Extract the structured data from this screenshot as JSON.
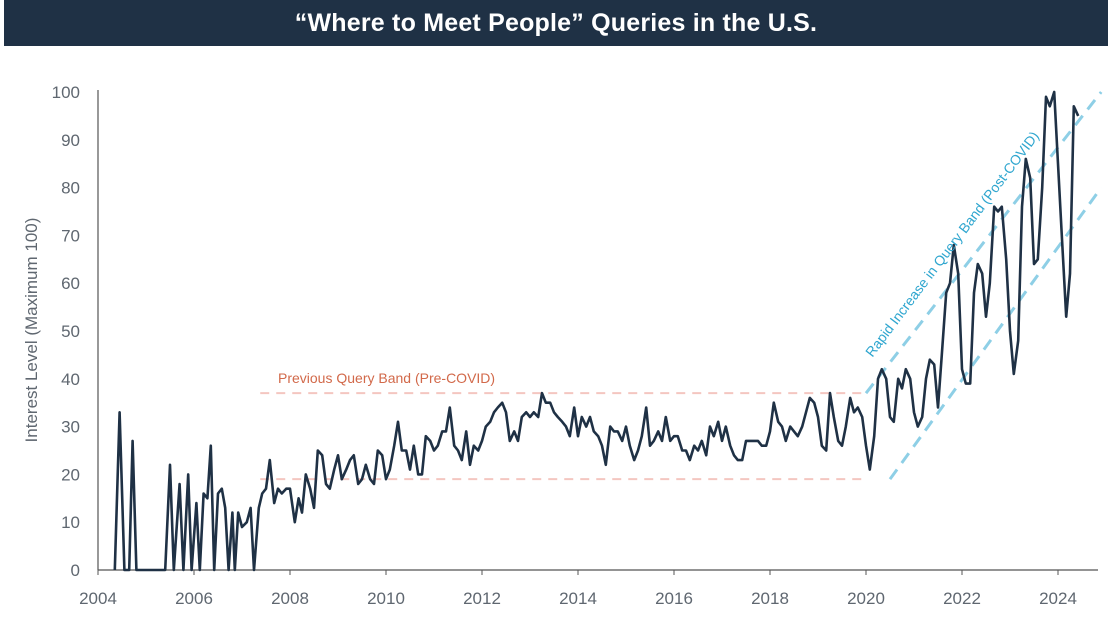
{
  "header": {
    "title": "“Where to Meet People” Queries in the U.S."
  },
  "chart_data": {
    "type": "line",
    "title": "“Where to Meet People” Queries in the U.S.",
    "xlabel": "",
    "ylabel": "Interest Level (Maximum 100)",
    "xlim": [
      2004,
      2024.9
    ],
    "ylim": [
      0,
      100
    ],
    "grid": false,
    "x_ticks": [
      "2004",
      "2006",
      "2008",
      "2010",
      "2012",
      "2014",
      "2016",
      "2018",
      "2020",
      "2022",
      "2024"
    ],
    "y_ticks": [
      "0",
      "10",
      "20",
      "30",
      "40",
      "50",
      "60",
      "70",
      "80",
      "90",
      "100"
    ],
    "series": [
      {
        "color": "#1f3145",
        "points": [
          [
            2004.35,
            0
          ],
          [
            2004.45,
            33
          ],
          [
            2004.55,
            0
          ],
          [
            2004.65,
            0
          ],
          [
            2004.72,
            27
          ],
          [
            2004.8,
            0
          ],
          [
            2005.0,
            0
          ],
          [
            2005.2,
            0
          ],
          [
            2005.4,
            0
          ],
          [
            2005.5,
            22
          ],
          [
            2005.58,
            0
          ],
          [
            2005.7,
            18
          ],
          [
            2005.78,
            0
          ],
          [
            2005.88,
            20
          ],
          [
            2005.95,
            0
          ],
          [
            2006.05,
            14
          ],
          [
            2006.12,
            0
          ],
          [
            2006.2,
            16
          ],
          [
            2006.28,
            15
          ],
          [
            2006.35,
            26
          ],
          [
            2006.42,
            0
          ],
          [
            2006.5,
            16
          ],
          [
            2006.58,
            17
          ],
          [
            2006.65,
            13
          ],
          [
            2006.72,
            0
          ],
          [
            2006.8,
            12
          ],
          [
            2006.85,
            0
          ],
          [
            2006.92,
            12
          ],
          [
            2007.0,
            9
          ],
          [
            2007.1,
            10
          ],
          [
            2007.18,
            13
          ],
          [
            2007.25,
            0
          ],
          [
            2007.35,
            13
          ],
          [
            2007.42,
            16
          ],
          [
            2007.5,
            17
          ],
          [
            2007.58,
            23
          ],
          [
            2007.67,
            14
          ],
          [
            2007.75,
            17
          ],
          [
            2007.83,
            16
          ],
          [
            2007.92,
            17
          ],
          [
            2008.0,
            17
          ],
          [
            2008.1,
            10
          ],
          [
            2008.18,
            15
          ],
          [
            2008.25,
            12
          ],
          [
            2008.33,
            20
          ],
          [
            2008.42,
            17
          ],
          [
            2008.5,
            13
          ],
          [
            2008.58,
            25
          ],
          [
            2008.67,
            24
          ],
          [
            2008.75,
            18
          ],
          [
            2008.83,
            17
          ],
          [
            2008.92,
            21
          ],
          [
            2009.0,
            24
          ],
          [
            2009.08,
            19
          ],
          [
            2009.17,
            21
          ],
          [
            2009.25,
            23
          ],
          [
            2009.33,
            24
          ],
          [
            2009.42,
            18
          ],
          [
            2009.5,
            19
          ],
          [
            2009.58,
            22
          ],
          [
            2009.67,
            19
          ],
          [
            2009.75,
            18
          ],
          [
            2009.83,
            25
          ],
          [
            2009.92,
            24
          ],
          [
            2010.0,
            19
          ],
          [
            2010.08,
            21
          ],
          [
            2010.17,
            26
          ],
          [
            2010.25,
            31
          ],
          [
            2010.33,
            25
          ],
          [
            2010.42,
            25
          ],
          [
            2010.5,
            21
          ],
          [
            2010.58,
            26
          ],
          [
            2010.67,
            20
          ],
          [
            2010.75,
            20
          ],
          [
            2010.83,
            28
          ],
          [
            2010.92,
            27
          ],
          [
            2011.0,
            25
          ],
          [
            2011.08,
            26
          ],
          [
            2011.17,
            29
          ],
          [
            2011.25,
            29
          ],
          [
            2011.33,
            34
          ],
          [
            2011.42,
            26
          ],
          [
            2011.5,
            25
          ],
          [
            2011.58,
            23
          ],
          [
            2011.67,
            29
          ],
          [
            2011.75,
            22
          ],
          [
            2011.83,
            26
          ],
          [
            2011.92,
            25
          ],
          [
            2012.0,
            27
          ],
          [
            2012.08,
            30
          ],
          [
            2012.17,
            31
          ],
          [
            2012.25,
            33
          ],
          [
            2012.33,
            34
          ],
          [
            2012.42,
            35
          ],
          [
            2012.5,
            33
          ],
          [
            2012.58,
            27
          ],
          [
            2012.67,
            29
          ],
          [
            2012.75,
            27
          ],
          [
            2012.83,
            32
          ],
          [
            2012.92,
            33
          ],
          [
            2013.0,
            32
          ],
          [
            2013.08,
            33
          ],
          [
            2013.17,
            32
          ],
          [
            2013.25,
            37
          ],
          [
            2013.33,
            35
          ],
          [
            2013.42,
            35
          ],
          [
            2013.5,
            33
          ],
          [
            2013.58,
            32
          ],
          [
            2013.67,
            31
          ],
          [
            2013.75,
            30
          ],
          [
            2013.83,
            28
          ],
          [
            2013.92,
            34
          ],
          [
            2014.0,
            28
          ],
          [
            2014.08,
            32
          ],
          [
            2014.17,
            30
          ],
          [
            2014.25,
            32
          ],
          [
            2014.33,
            29
          ],
          [
            2014.42,
            28
          ],
          [
            2014.5,
            26
          ],
          [
            2014.58,
            22
          ],
          [
            2014.67,
            30
          ],
          [
            2014.75,
            29
          ],
          [
            2014.83,
            29
          ],
          [
            2014.92,
            27
          ],
          [
            2015.0,
            30
          ],
          [
            2015.08,
            26
          ],
          [
            2015.17,
            23
          ],
          [
            2015.25,
            25
          ],
          [
            2015.33,
            28
          ],
          [
            2015.42,
            34
          ],
          [
            2015.5,
            26
          ],
          [
            2015.58,
            27
          ],
          [
            2015.67,
            29
          ],
          [
            2015.75,
            27
          ],
          [
            2015.83,
            32
          ],
          [
            2015.92,
            27
          ],
          [
            2016.0,
            28
          ],
          [
            2016.08,
            28
          ],
          [
            2016.17,
            25
          ],
          [
            2016.25,
            25
          ],
          [
            2016.33,
            23
          ],
          [
            2016.42,
            26
          ],
          [
            2016.5,
            25
          ],
          [
            2016.58,
            27
          ],
          [
            2016.67,
            24
          ],
          [
            2016.75,
            30
          ],
          [
            2016.83,
            28
          ],
          [
            2016.92,
            31
          ],
          [
            2017.0,
            27
          ],
          [
            2017.08,
            30
          ],
          [
            2017.17,
            26
          ],
          [
            2017.25,
            24
          ],
          [
            2017.33,
            23
          ],
          [
            2017.42,
            23
          ],
          [
            2017.5,
            27
          ],
          [
            2017.58,
            27
          ],
          [
            2017.67,
            27
          ],
          [
            2017.75,
            27
          ],
          [
            2017.83,
            26
          ],
          [
            2017.92,
            26
          ],
          [
            2018.0,
            29
          ],
          [
            2018.08,
            35
          ],
          [
            2018.17,
            31
          ],
          [
            2018.25,
            30
          ],
          [
            2018.33,
            27
          ],
          [
            2018.42,
            30
          ],
          [
            2018.5,
            29
          ],
          [
            2018.58,
            28
          ],
          [
            2018.67,
            30
          ],
          [
            2018.75,
            33
          ],
          [
            2018.83,
            36
          ],
          [
            2018.92,
            35
          ],
          [
            2019.0,
            32
          ],
          [
            2019.08,
            26
          ],
          [
            2019.17,
            25
          ],
          [
            2019.25,
            37
          ],
          [
            2019.33,
            32
          ],
          [
            2019.42,
            27
          ],
          [
            2019.5,
            26
          ],
          [
            2019.58,
            30
          ],
          [
            2019.67,
            36
          ],
          [
            2019.75,
            33
          ],
          [
            2019.83,
            34
          ],
          [
            2019.92,
            32
          ],
          [
            2020.0,
            26
          ],
          [
            2020.08,
            21
          ],
          [
            2020.17,
            28
          ],
          [
            2020.25,
            40
          ],
          [
            2020.33,
            42
          ],
          [
            2020.42,
            40
          ],
          [
            2020.5,
            32
          ],
          [
            2020.58,
            31
          ],
          [
            2020.67,
            40
          ],
          [
            2020.75,
            38
          ],
          [
            2020.83,
            42
          ],
          [
            2020.92,
            40
          ],
          [
            2021.0,
            33
          ],
          [
            2021.08,
            30
          ],
          [
            2021.17,
            32
          ],
          [
            2021.25,
            40
          ],
          [
            2021.33,
            44
          ],
          [
            2021.42,
            43
          ],
          [
            2021.5,
            34
          ],
          [
            2021.58,
            45
          ],
          [
            2021.67,
            58
          ],
          [
            2021.75,
            60
          ],
          [
            2021.83,
            68
          ],
          [
            2021.92,
            62
          ],
          [
            2022.0,
            42
          ],
          [
            2022.08,
            39
          ],
          [
            2022.17,
            39
          ],
          [
            2022.25,
            58
          ],
          [
            2022.33,
            64
          ],
          [
            2022.42,
            62
          ],
          [
            2022.5,
            53
          ],
          [
            2022.58,
            60
          ],
          [
            2022.67,
            76
          ],
          [
            2022.75,
            75
          ],
          [
            2022.83,
            76
          ],
          [
            2022.92,
            65
          ],
          [
            2023.0,
            50
          ],
          [
            2023.08,
            41
          ],
          [
            2023.17,
            48
          ],
          [
            2023.25,
            76
          ],
          [
            2023.33,
            86
          ],
          [
            2023.42,
            82
          ],
          [
            2023.5,
            64
          ],
          [
            2023.58,
            65
          ],
          [
            2023.67,
            80
          ],
          [
            2023.75,
            99
          ],
          [
            2023.83,
            97
          ],
          [
            2023.92,
            100
          ],
          [
            2024.0,
            85
          ],
          [
            2024.08,
            70
          ],
          [
            2024.17,
            53
          ],
          [
            2024.25,
            62
          ],
          [
            2024.33,
            97
          ],
          [
            2024.42,
            95
          ]
        ]
      }
    ],
    "bands": [
      {
        "label": "Previous Query Band (Pre-COVID)",
        "color": "#f4c6c0",
        "lines": [
          {
            "from": [
              2007.38,
              37
            ],
            "to": [
              2019.92,
              37
            ]
          },
          {
            "from": [
              2007.38,
              19
            ],
            "to": [
              2019.92,
              19
            ]
          }
        ]
      },
      {
        "label": "Rapid Increase in Query Band (Post-COVID)",
        "color": "#8ecfe6",
        "lines": [
          {
            "from": [
              2020.0,
              37
            ],
            "to": [
              2024.9,
              100
            ]
          },
          {
            "from": [
              2020.5,
              19
            ],
            "to": [
              2024.9,
              80
            ]
          }
        ]
      }
    ],
    "annotations": [
      {
        "text": "Previous Query Band (Pre-COVID)",
        "color": "#d2694a"
      },
      {
        "text": "Rapid Increase in Query Band (Post-COVID)",
        "color": "#2fa6cf"
      }
    ]
  }
}
